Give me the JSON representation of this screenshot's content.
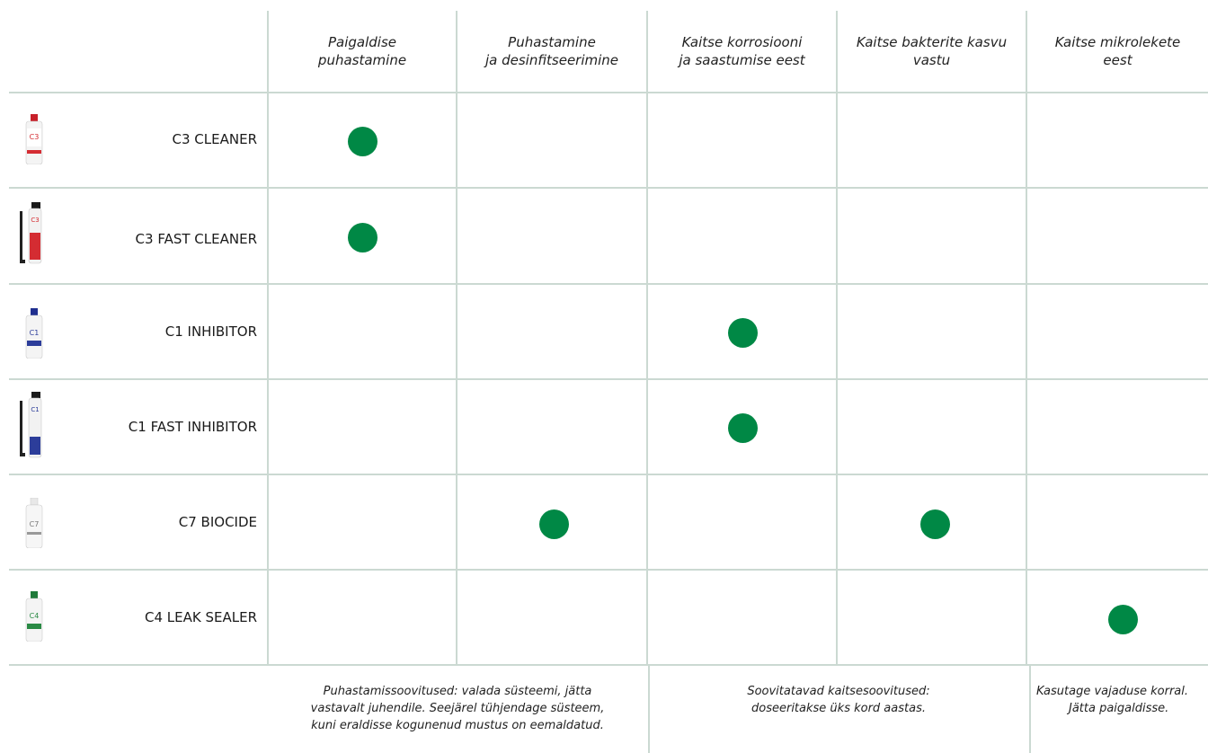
{
  "headers": [
    {
      "line1": "Paigaldise",
      "line2": "puhastamine"
    },
    {
      "line1": "Puhastamine",
      "line2": "ja desinfitseerimine"
    },
    {
      "line1": "Kaitse korrosiooni",
      "line2": "ja saastumise eest"
    },
    {
      "line1": "Kaitse bakterite kasvu",
      "line2": "vastu"
    },
    {
      "line1": "Kaitse mikrolekete",
      "line2": "eest"
    }
  ],
  "products": [
    {
      "name": "C3 CLEANER",
      "bottle_icon": "red-bottle-icon",
      "cap_color": "#c8202a",
      "label_color": "#d42c32",
      "code": "C3",
      "checks": [
        true,
        false,
        false,
        false,
        false
      ]
    },
    {
      "name": "C3 FAST CLEANER",
      "bottle_icon": "red-spray-can-icon",
      "cap_color": "#1a1a1a",
      "label_color": "#d42c32",
      "code": "C3",
      "checks": [
        true,
        false,
        false,
        false,
        false
      ]
    },
    {
      "name": "C1 INHIBITOR",
      "bottle_icon": "blue-bottle-icon",
      "cap_color": "#1f2f8f",
      "label_color": "#2c3d9a",
      "code": "C1",
      "checks": [
        false,
        false,
        true,
        false,
        false
      ]
    },
    {
      "name": "C1 FAST INHIBITOR",
      "bottle_icon": "blue-spray-can-icon",
      "cap_color": "#1a1a1a",
      "label_color": "#2c3d9a",
      "code": "C1",
      "checks": [
        false,
        false,
        true,
        false,
        false
      ]
    },
    {
      "name": "C7 BIOCIDE",
      "bottle_icon": "grey-bottle-icon",
      "cap_color": "#e8e8e8",
      "label_color": "#777777",
      "code": "C7",
      "checks": [
        false,
        true,
        false,
        true,
        false
      ]
    },
    {
      "name": "C4 LEAK SEALER",
      "bottle_icon": "green-bottle-icon",
      "cap_color": "#1f7a3a",
      "label_color": "#2a8a45",
      "code": "C4",
      "checks": [
        false,
        false,
        false,
        false,
        true
      ]
    }
  ],
  "footnotes": [
    {
      "line1": "Puhastamissoovitused: valada süsteemi, jätta",
      "line2": "vastavalt juhendile. Seejärel tühjendage süsteem,",
      "line3": "kuni eraldisse kogunenud mustus on eemaldatud."
    },
    {
      "line1": "Soovitatavad kaitsesoovitused:",
      "line2": "doseeritakse üks kord aastas.",
      "line3": ""
    },
    {
      "line1": "Kasutage vajaduse korral.",
      "line2": "Jätta paigaldisse.",
      "line3": ""
    }
  ],
  "colors": {
    "dot": "#008845",
    "grid": "#cbd9d2"
  }
}
